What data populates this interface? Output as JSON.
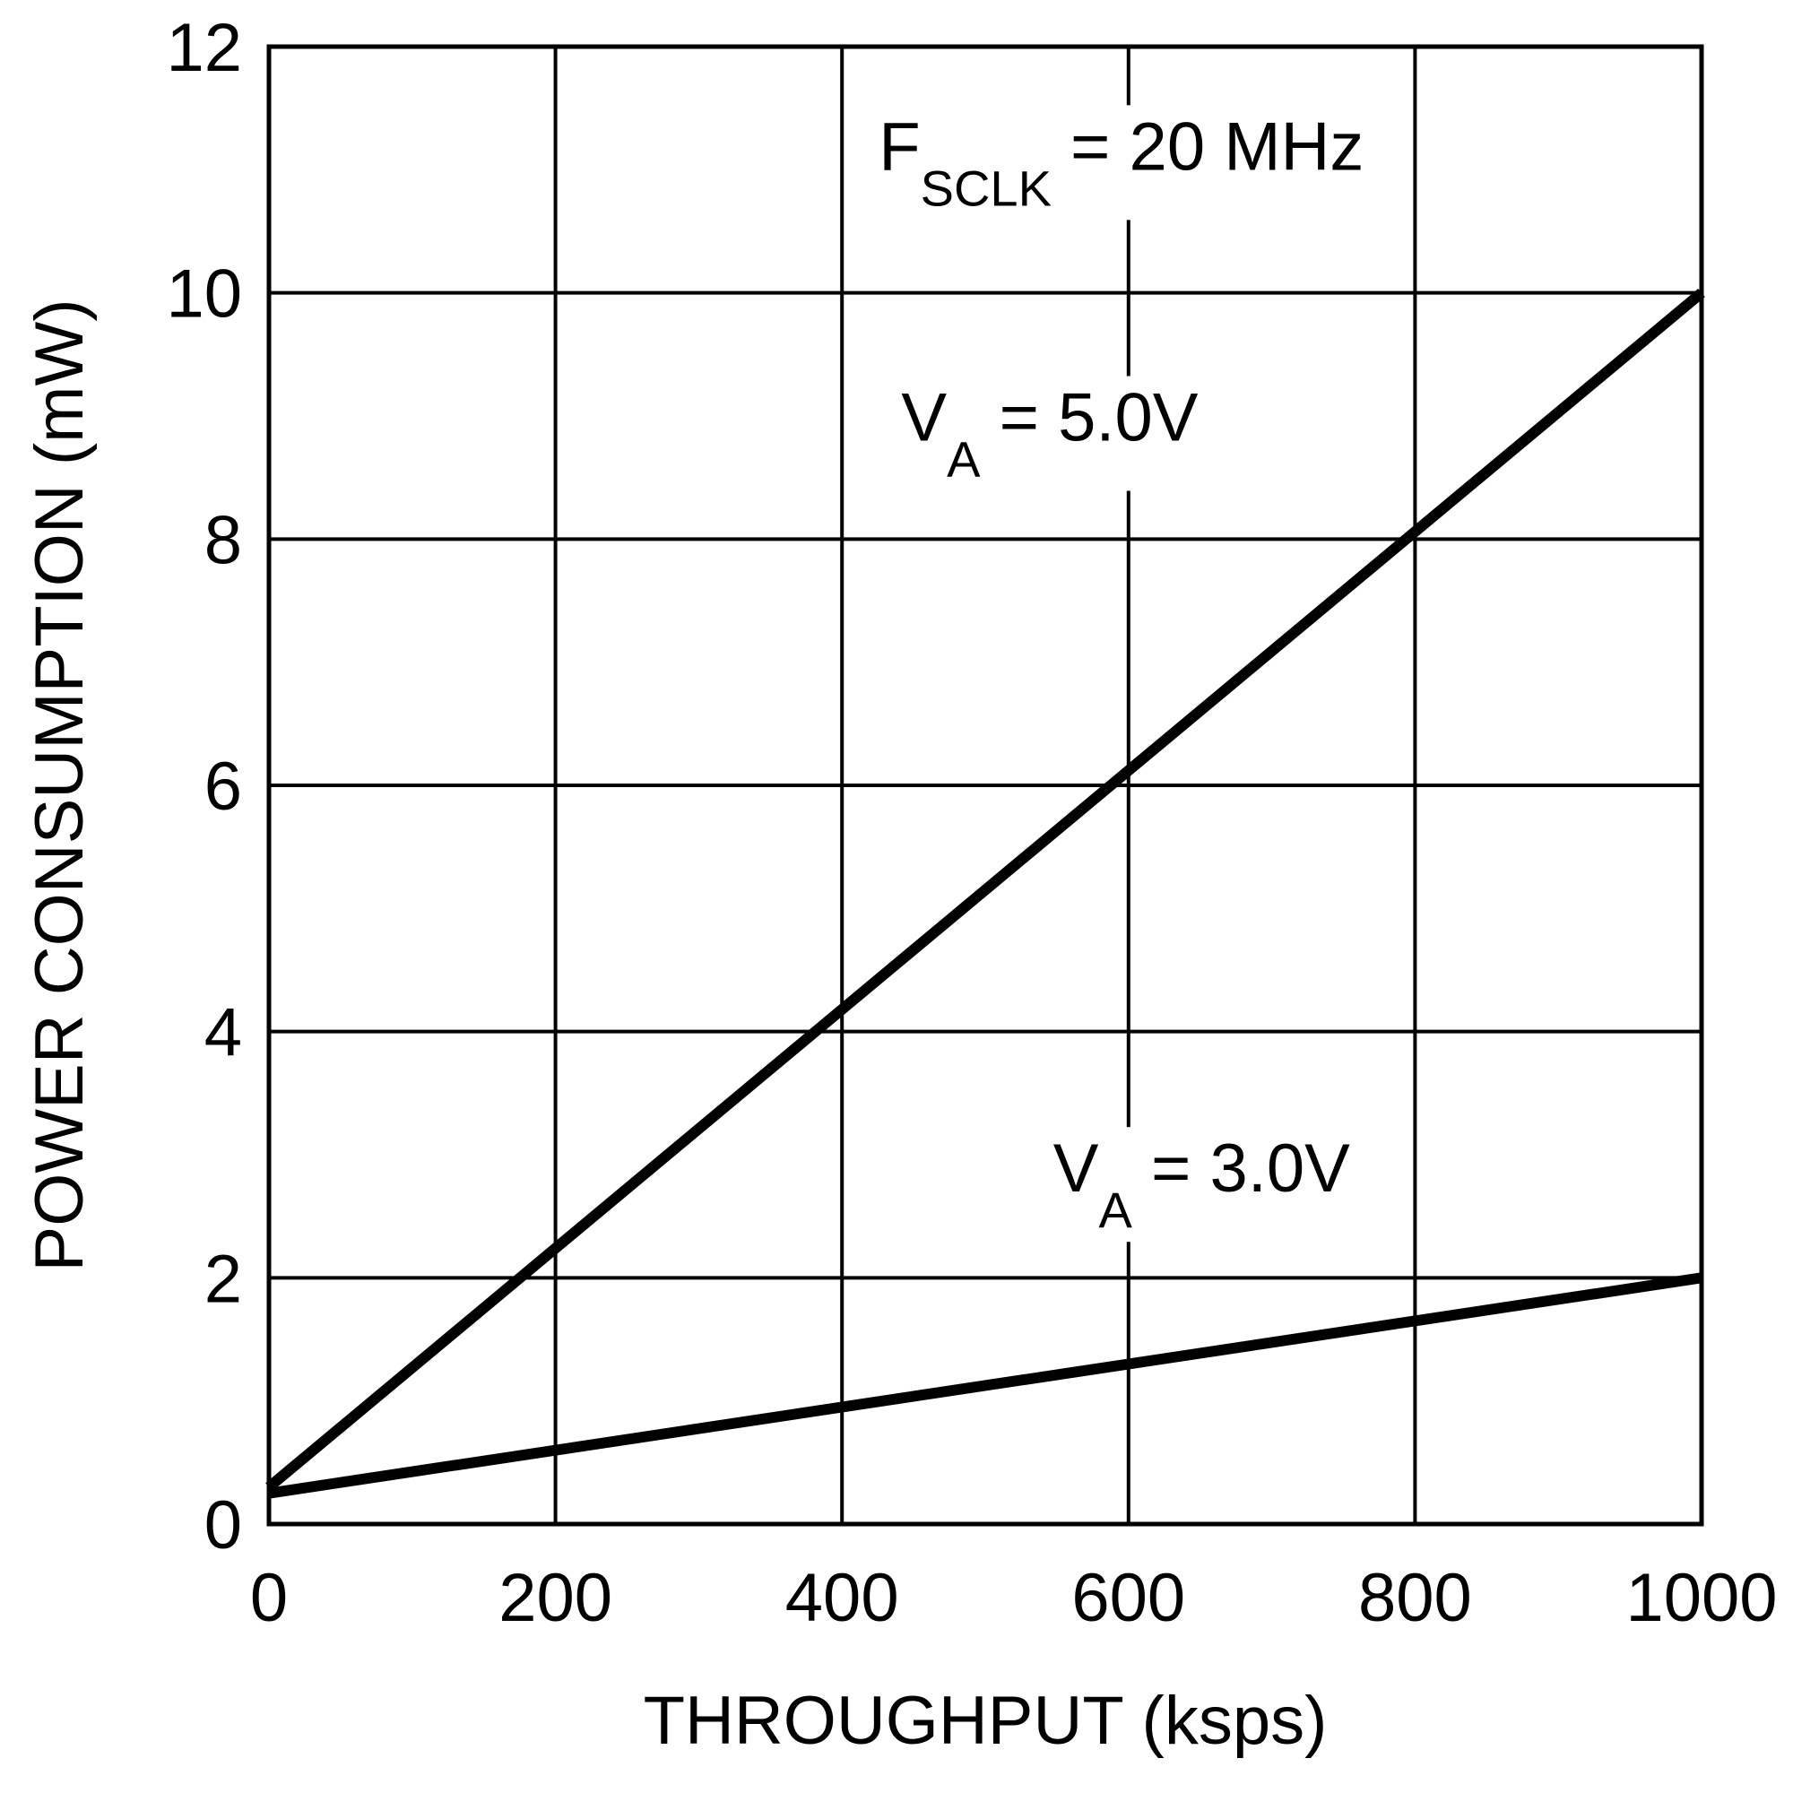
{
  "chart_data": {
    "type": "line",
    "title": "",
    "xlabel": "THROUGHPUT (ksps)",
    "ylabel": "POWER CONSUMPTION (mW)",
    "xlim": [
      0,
      1000
    ],
    "ylim": [
      0,
      12
    ],
    "xticks": [
      0,
      200,
      400,
      600,
      800,
      1000
    ],
    "yticks": [
      0,
      2,
      4,
      6,
      8,
      10,
      12
    ],
    "xtick_labels": [
      "0",
      "200",
      "400",
      "600",
      "800",
      "1000"
    ],
    "ytick_labels": [
      "0",
      "2",
      "4",
      "6",
      "8",
      "10",
      "12"
    ],
    "grid": true,
    "series": [
      {
        "name": "VA = 5.0V",
        "x": [
          0,
          1000
        ],
        "y": [
          0.3,
          10.0
        ]
      },
      {
        "name": "VA = 3.0V",
        "x": [
          0,
          1000
        ],
        "y": [
          0.25,
          2.0
        ]
      }
    ],
    "annotations": [
      {
        "id": "fsclk",
        "main": "F",
        "sub": "SCLK",
        "rest": " = 20 MHz",
        "x": 595,
        "y": 11.0
      },
      {
        "id": "va5",
        "main": "V",
        "sub": "A",
        "rest": " = 5.0V",
        "x": 545,
        "y": 8.8
      },
      {
        "id": "va3",
        "main": "V",
        "sub": "A",
        "rest": " = 3.0V",
        "x": 651,
        "y": 2.7
      }
    ]
  }
}
